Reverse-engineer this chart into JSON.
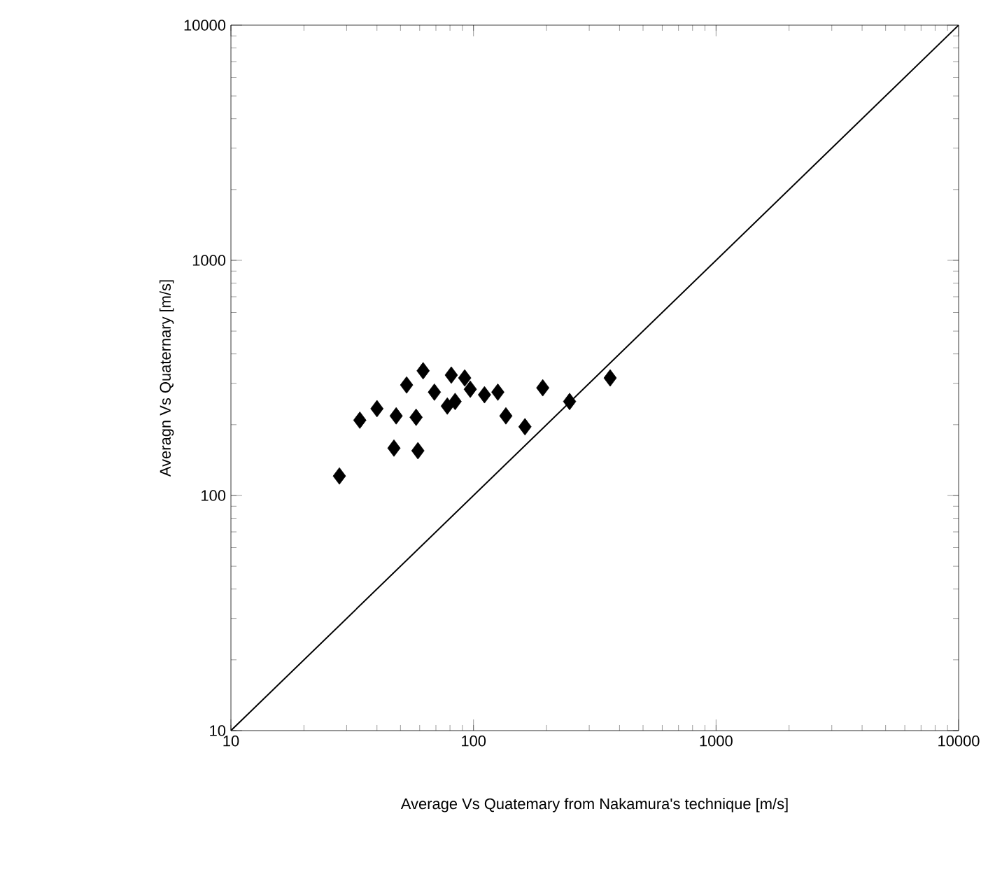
{
  "chart_data": {
    "type": "scatter",
    "xlabel": "Average Vs Quatemary from Nakamura's technique [m/s]",
    "ylabel": "Averagn Vs Quaternary [m/s]",
    "log": "xy",
    "xlim": [
      10,
      10000
    ],
    "ylim": [
      10,
      10000
    ],
    "xticks": [
      10,
      100,
      1000,
      10000
    ],
    "yticks": [
      10,
      100,
      1000,
      10000
    ],
    "grid": false,
    "series": [
      {
        "type": "scatter",
        "color": "#000000",
        "marker": "diamond",
        "x": [
          28,
          47,
          59,
          34,
          40,
          48,
          58,
          53,
          62,
          69,
          81,
          84,
          97,
          111,
          126,
          78,
          92,
          136,
          163,
          193,
          249,
          366
        ],
        "values": [
          121,
          159,
          155,
          209,
          234,
          218,
          215,
          295,
          339,
          275,
          325,
          251,
          283,
          268,
          275,
          240,
          316,
          218,
          196,
          287,
          251,
          316
        ]
      },
      {
        "type": "line",
        "color": "#000000",
        "marker": "none",
        "line_style": "solid",
        "x": [
          10,
          10000
        ],
        "values": [
          10,
          10000
        ]
      }
    ]
  }
}
